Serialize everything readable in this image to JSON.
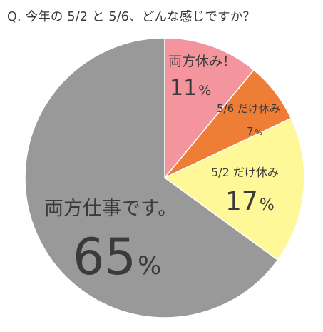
{
  "chart_data": {
    "type": "pie",
    "title": "Q. 今年の 5/2 と 5/6、どんな感じですか？",
    "slices": [
      {
        "label": "両方休み！",
        "value": 11,
        "display": "11%",
        "color": "#f4959d"
      },
      {
        "label": "5/6 だけ休み",
        "value": 7,
        "display": "7%",
        "color": "#ee7d35"
      },
      {
        "label": "5/2 だけ休み",
        "value": 17,
        "display": "17%",
        "color": "#fef899"
      },
      {
        "label": "両方仕事です。",
        "value": 65,
        "display": "65%",
        "color": "#999999"
      }
    ]
  }
}
